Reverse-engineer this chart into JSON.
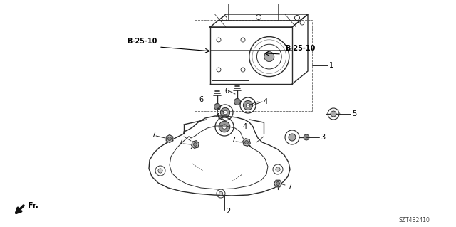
{
  "background_color": "#ffffff",
  "fig_width": 6.4,
  "fig_height": 3.19,
  "dpi": 100,
  "labels": {
    "B25_10_left": "B-25-10",
    "B25_10_right": "B-25-10",
    "part1": "1",
    "part2": "2",
    "part3": "3",
    "part4": "4",
    "part5": "5",
    "part6": "6",
    "part7": "7",
    "fr": "Fr.",
    "diagram_code": "SZT4B2410"
  },
  "line_color": "#2a2a2a",
  "text_color": "#000000",
  "label_font_size": 7,
  "small_font_size": 5.5,
  "bold_font_size": 7
}
